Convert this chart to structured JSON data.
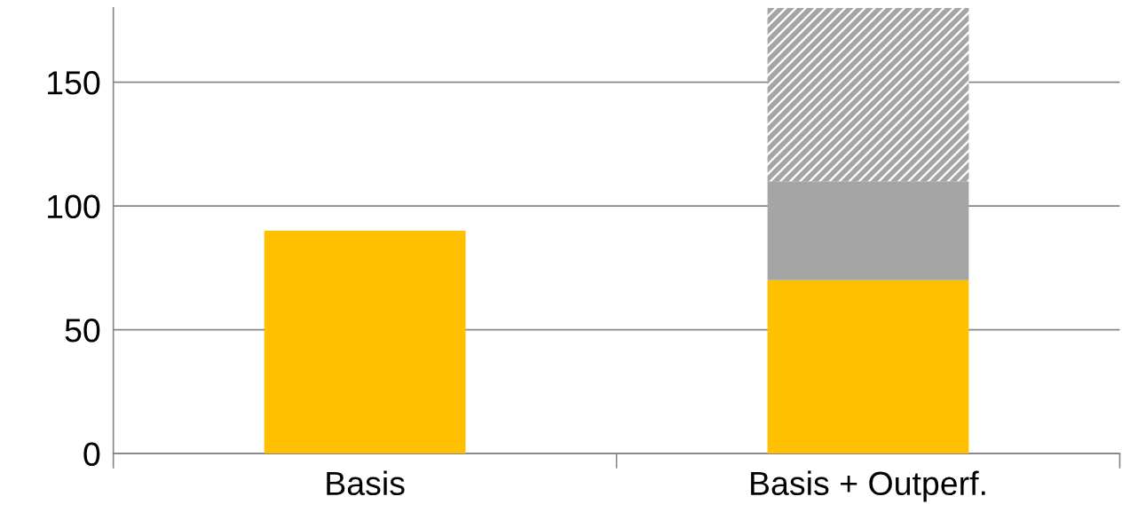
{
  "chart_data": {
    "type": "bar",
    "stacked": true,
    "categories": [
      "Basis",
      "Basis + Outperf."
    ],
    "series": [
      {
        "color": "#ffc000",
        "values": [
          90,
          70
        ]
      },
      {
        "color": "#a5a5a5",
        "values": [
          null,
          40
        ]
      },
      {
        "color": "#a5a5a5",
        "values": [
          null,
          70
        ]
      }
    ],
    "ylim": [
      0,
      180
    ],
    "yticks": [
      0,
      50,
      100,
      150
    ],
    "grid": "y",
    "legend": false
  }
}
